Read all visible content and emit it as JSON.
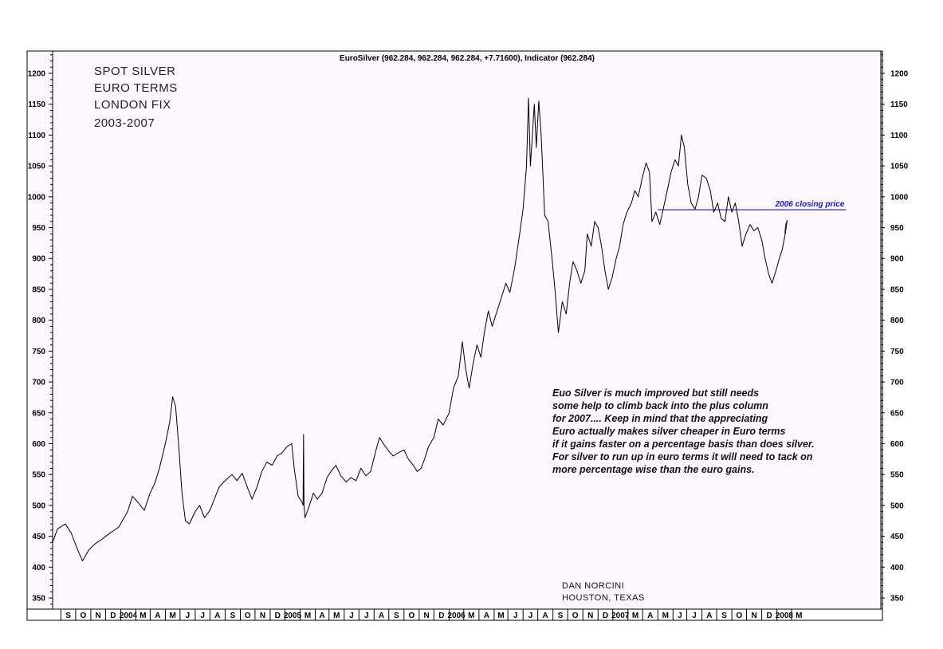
{
  "chart_data": {
    "type": "line",
    "header": "EuroSilver (962.284, 962.284, 962.284, +7.71600), Indicator (962.284)",
    "title_lines": [
      "SPOT SILVER",
      "EURO TERMS",
      "LONDON FIX",
      "2003-2007"
    ],
    "ylim": [
      330,
      1230
    ],
    "y_ticks": [
      350,
      400,
      450,
      500,
      550,
      600,
      650,
      700,
      750,
      800,
      850,
      900,
      950,
      1000,
      1050,
      1100,
      1150,
      1200
    ],
    "x_range": [
      "2003-08-15",
      "2008-03-31"
    ],
    "month_labels": [
      {
        "label": "S",
        "date": "2003-09-01"
      },
      {
        "label": "O",
        "date": "2003-10-01"
      },
      {
        "label": "N",
        "date": "2003-11-01"
      },
      {
        "label": "D",
        "date": "2003-12-01"
      },
      {
        "label": "2004",
        "date": "2004-01-01"
      },
      {
        "label": "M",
        "date": "2004-02-01"
      },
      {
        "label": "A",
        "date": "2004-03-01"
      },
      {
        "label": "M",
        "date": "2004-04-01"
      },
      {
        "label": "J",
        "date": "2004-05-01"
      },
      {
        "label": "J",
        "date": "2004-06-01"
      },
      {
        "label": "A",
        "date": "2004-07-01"
      },
      {
        "label": "S",
        "date": "2004-08-01"
      },
      {
        "label": "O",
        "date": "2004-09-01"
      },
      {
        "label": "N",
        "date": "2004-10-01"
      },
      {
        "label": "D",
        "date": "2004-11-01"
      },
      {
        "label": "2005",
        "date": "2004-12-01"
      },
      {
        "label": "M",
        "date": "2005-01-01"
      },
      {
        "label": "A",
        "date": "2005-02-01"
      },
      {
        "label": "M",
        "date": "2005-03-01"
      },
      {
        "label": "J",
        "date": "2005-04-01"
      },
      {
        "label": "J",
        "date": "2005-05-01"
      },
      {
        "label": "A",
        "date": "2005-06-01"
      },
      {
        "label": "S",
        "date": "2005-07-01"
      },
      {
        "label": "O",
        "date": "2005-08-01"
      },
      {
        "label": "N",
        "date": "2005-09-01"
      },
      {
        "label": "D",
        "date": "2005-10-01"
      },
      {
        "label": "2006",
        "date": "2005-11-01"
      },
      {
        "label": "M",
        "date": "2005-12-01"
      },
      {
        "label": "A",
        "date": "2006-01-01"
      },
      {
        "label": "M",
        "date": "2006-02-01"
      },
      {
        "label": "J",
        "date": "2006-03-01"
      },
      {
        "label": "J",
        "date": "2006-04-01"
      },
      {
        "label": "A",
        "date": "2006-05-01"
      },
      {
        "label": "S",
        "date": "2006-06-01"
      },
      {
        "label": "O",
        "date": "2006-07-01"
      },
      {
        "label": "N",
        "date": "2006-08-01"
      },
      {
        "label": "D",
        "date": "2006-09-01"
      },
      {
        "label": "2007",
        "date": "2006-10-01"
      },
      {
        "label": "M",
        "date": "2006-11-01"
      },
      {
        "label": "A",
        "date": "2006-12-01"
      },
      {
        "label": "M",
        "date": "2007-01-01"
      },
      {
        "label": "J",
        "date": "2007-02-01"
      },
      {
        "label": "J",
        "date": "2007-03-01"
      },
      {
        "label": "A",
        "date": "2007-04-01"
      },
      {
        "label": "S",
        "date": "2007-05-01"
      },
      {
        "label": "O",
        "date": "2007-06-01"
      },
      {
        "label": "N",
        "date": "2007-07-01"
      },
      {
        "label": "D",
        "date": "2007-08-01"
      },
      {
        "label": "2008",
        "date": "2007-09-01"
      },
      {
        "label": "M",
        "date": "2007-10-01"
      }
    ],
    "series": [
      {
        "color": "#000000",
        "points": [
          [
            "2003-08-15",
            440
          ],
          [
            "2003-08-25",
            462
          ],
          [
            "2003-09-10",
            470
          ],
          [
            "2003-09-22",
            455
          ],
          [
            "2003-10-05",
            428
          ],
          [
            "2003-10-15",
            410
          ],
          [
            "2003-10-28",
            428
          ],
          [
            "2003-11-10",
            438
          ],
          [
            "2003-11-25",
            446
          ],
          [
            "2003-12-10",
            455
          ],
          [
            "2003-12-28",
            465
          ],
          [
            "2004-01-15",
            490
          ],
          [
            "2004-01-25",
            515
          ],
          [
            "2004-02-05",
            505
          ],
          [
            "2004-02-18",
            492
          ],
          [
            "2004-03-01",
            520
          ],
          [
            "2004-03-10",
            535
          ],
          [
            "2004-03-20",
            560
          ],
          [
            "2004-04-01",
            600
          ],
          [
            "2004-04-10",
            635
          ],
          [
            "2004-04-16",
            676
          ],
          [
            "2004-04-22",
            660
          ],
          [
            "2004-04-28",
            600
          ],
          [
            "2004-05-05",
            520
          ],
          [
            "2004-05-12",
            475
          ],
          [
            "2004-05-20",
            470
          ],
          [
            "2004-06-01",
            490
          ],
          [
            "2004-06-10",
            500
          ],
          [
            "2004-06-20",
            480
          ],
          [
            "2004-07-01",
            492
          ],
          [
            "2004-07-10",
            510
          ],
          [
            "2004-07-20",
            530
          ],
          [
            "2004-08-01",
            540
          ],
          [
            "2004-08-15",
            550
          ],
          [
            "2004-08-25",
            540
          ],
          [
            "2004-09-05",
            552
          ],
          [
            "2004-09-15",
            530
          ],
          [
            "2004-09-25",
            510
          ],
          [
            "2004-10-05",
            530
          ],
          [
            "2004-10-15",
            555
          ],
          [
            "2004-10-25",
            570
          ],
          [
            "2004-11-05",
            565
          ],
          [
            "2004-11-15",
            580
          ],
          [
            "2004-11-25",
            585
          ],
          [
            "2004-12-05",
            595
          ],
          [
            "2004-12-15",
            600
          ],
          [
            "2004-12-20",
            560
          ],
          [
            "2004-12-28",
            515
          ],
          [
            "2005-01-05",
            505
          ],
          [
            "2005-01-07",
            500
          ],
          [
            "2005-01-08",
            615
          ],
          [
            "2005-01-09",
            500
          ],
          [
            "2005-01-11",
            480
          ],
          [
            "2005-01-20",
            500
          ],
          [
            "2005-01-28",
            520
          ],
          [
            "2005-02-05",
            510
          ],
          [
            "2005-02-15",
            520
          ],
          [
            "2005-02-25",
            545
          ],
          [
            "2005-03-05",
            555
          ],
          [
            "2005-03-15",
            565
          ],
          [
            "2005-03-25",
            548
          ],
          [
            "2005-04-05",
            538
          ],
          [
            "2005-04-15",
            545
          ],
          [
            "2005-04-25",
            540
          ],
          [
            "2005-05-05",
            560
          ],
          [
            "2005-05-15",
            548
          ],
          [
            "2005-05-25",
            555
          ],
          [
            "2005-06-05",
            590
          ],
          [
            "2005-06-12",
            610
          ],
          [
            "2005-06-20",
            600
          ],
          [
            "2005-07-01",
            588
          ],
          [
            "2005-07-10",
            580
          ],
          [
            "2005-07-20",
            585
          ],
          [
            "2005-08-01",
            590
          ],
          [
            "2005-08-10",
            575
          ],
          [
            "2005-08-20",
            565
          ],
          [
            "2005-08-28",
            555
          ],
          [
            "2005-09-05",
            560
          ],
          [
            "2005-09-12",
            575
          ],
          [
            "2005-09-20",
            595
          ],
          [
            "2005-10-01",
            610
          ],
          [
            "2005-10-10",
            640
          ],
          [
            "2005-10-20",
            630
          ],
          [
            "2005-11-01",
            650
          ],
          [
            "2005-11-10",
            690
          ],
          [
            "2005-11-20",
            710
          ],
          [
            "2005-11-28",
            765
          ],
          [
            "2005-12-05",
            720
          ],
          [
            "2005-12-12",
            690
          ],
          [
            "2005-12-20",
            730
          ],
          [
            "2005-12-28",
            760
          ],
          [
            "2006-01-05",
            740
          ],
          [
            "2006-01-12",
            780
          ],
          [
            "2006-01-20",
            815
          ],
          [
            "2006-01-28",
            790
          ],
          [
            "2006-02-05",
            810
          ],
          [
            "2006-02-15",
            835
          ],
          [
            "2006-02-25",
            860
          ],
          [
            "2006-03-05",
            845
          ],
          [
            "2006-03-15",
            885
          ],
          [
            "2006-03-25",
            940
          ],
          [
            "2006-04-01",
            980
          ],
          [
            "2006-04-08",
            1050
          ],
          [
            "2006-04-12",
            1160
          ],
          [
            "2006-04-16",
            1050
          ],
          [
            "2006-04-20",
            1100
          ],
          [
            "2006-04-24",
            1150
          ],
          [
            "2006-04-28",
            1080
          ],
          [
            "2006-05-03",
            1155
          ],
          [
            "2006-05-08",
            1100
          ],
          [
            "2006-05-15",
            970
          ],
          [
            "2006-05-22",
            960
          ],
          [
            "2006-05-30",
            900
          ],
          [
            "2006-06-05",
            850
          ],
          [
            "2006-06-12",
            780
          ],
          [
            "2006-06-20",
            830
          ],
          [
            "2006-06-28",
            810
          ],
          [
            "2006-07-05",
            860
          ],
          [
            "2006-07-12",
            895
          ],
          [
            "2006-07-20",
            880
          ],
          [
            "2006-07-28",
            860
          ],
          [
            "2006-08-05",
            880
          ],
          [
            "2006-08-10",
            940
          ],
          [
            "2006-08-18",
            920
          ],
          [
            "2006-08-25",
            960
          ],
          [
            "2006-09-01",
            950
          ],
          [
            "2006-09-08",
            920
          ],
          [
            "2006-09-15",
            880
          ],
          [
            "2006-09-22",
            850
          ],
          [
            "2006-09-30",
            870
          ],
          [
            "2006-10-08",
            900
          ],
          [
            "2006-10-15",
            920
          ],
          [
            "2006-10-22",
            955
          ],
          [
            "2006-10-30",
            975
          ],
          [
            "2006-11-08",
            990
          ],
          [
            "2006-11-15",
            1010
          ],
          [
            "2006-11-22",
            1000
          ],
          [
            "2006-11-30",
            1030
          ],
          [
            "2006-12-08",
            1055
          ],
          [
            "2006-12-15",
            1040
          ],
          [
            "2006-12-20",
            960
          ],
          [
            "2006-12-28",
            975
          ],
          [
            "2007-01-05",
            955
          ],
          [
            "2007-01-12",
            980
          ],
          [
            "2007-01-20",
            1010
          ],
          [
            "2007-01-28",
            1040
          ],
          [
            "2007-02-05",
            1060
          ],
          [
            "2007-02-12",
            1050
          ],
          [
            "2007-02-18",
            1100
          ],
          [
            "2007-02-24",
            1080
          ],
          [
            "2007-03-03",
            1020
          ],
          [
            "2007-03-10",
            990
          ],
          [
            "2007-03-18",
            980
          ],
          [
            "2007-03-25",
            1000
          ],
          [
            "2007-04-01",
            1035
          ],
          [
            "2007-04-10",
            1030
          ],
          [
            "2007-04-18",
            1010
          ],
          [
            "2007-04-25",
            975
          ],
          [
            "2007-05-03",
            990
          ],
          [
            "2007-05-10",
            965
          ],
          [
            "2007-05-18",
            960
          ],
          [
            "2007-05-25",
            1000
          ],
          [
            "2007-06-01",
            975
          ],
          [
            "2007-06-08",
            990
          ],
          [
            "2007-06-15",
            960
          ],
          [
            "2007-06-22",
            920
          ],
          [
            "2007-06-30",
            940
          ],
          [
            "2007-07-08",
            955
          ],
          [
            "2007-07-16",
            945
          ],
          [
            "2007-07-24",
            950
          ],
          [
            "2007-08-01",
            930
          ],
          [
            "2007-08-08",
            900
          ],
          [
            "2007-08-15",
            875
          ],
          [
            "2007-08-22",
            860
          ],
          [
            "2007-08-30",
            880
          ],
          [
            "2007-09-06",
            900
          ],
          [
            "2007-09-12",
            915
          ],
          [
            "2007-09-18",
            940
          ],
          [
            "2007-09-22",
            962
          ]
        ]
      }
    ],
    "reference_line": {
      "value": 979,
      "label": "2006 closing price",
      "from": "2007-01-01",
      "to": "2008-01-20",
      "color": "#1a1aa0"
    },
    "annotation_lines": [
      "Euo Silver is much improved but still needs",
      "some help to climb back into the plus column",
      "for 2007.... Keep in mind that the appreciating",
      "Euro actually makes silver cheaper in Euro terms",
      "if it gains faster on a percentage basis than does silver.",
      "For silver to run up in euro terms it will need to tack on",
      "more percentage wise than the euro gains."
    ],
    "signature_lines": [
      "DAN NORCINI",
      "HOUSTON, TEXAS"
    ],
    "grid": false,
    "colors": {
      "background": "#fdf6fd",
      "line": "#000000",
      "reference": "#1a1aa0"
    }
  }
}
